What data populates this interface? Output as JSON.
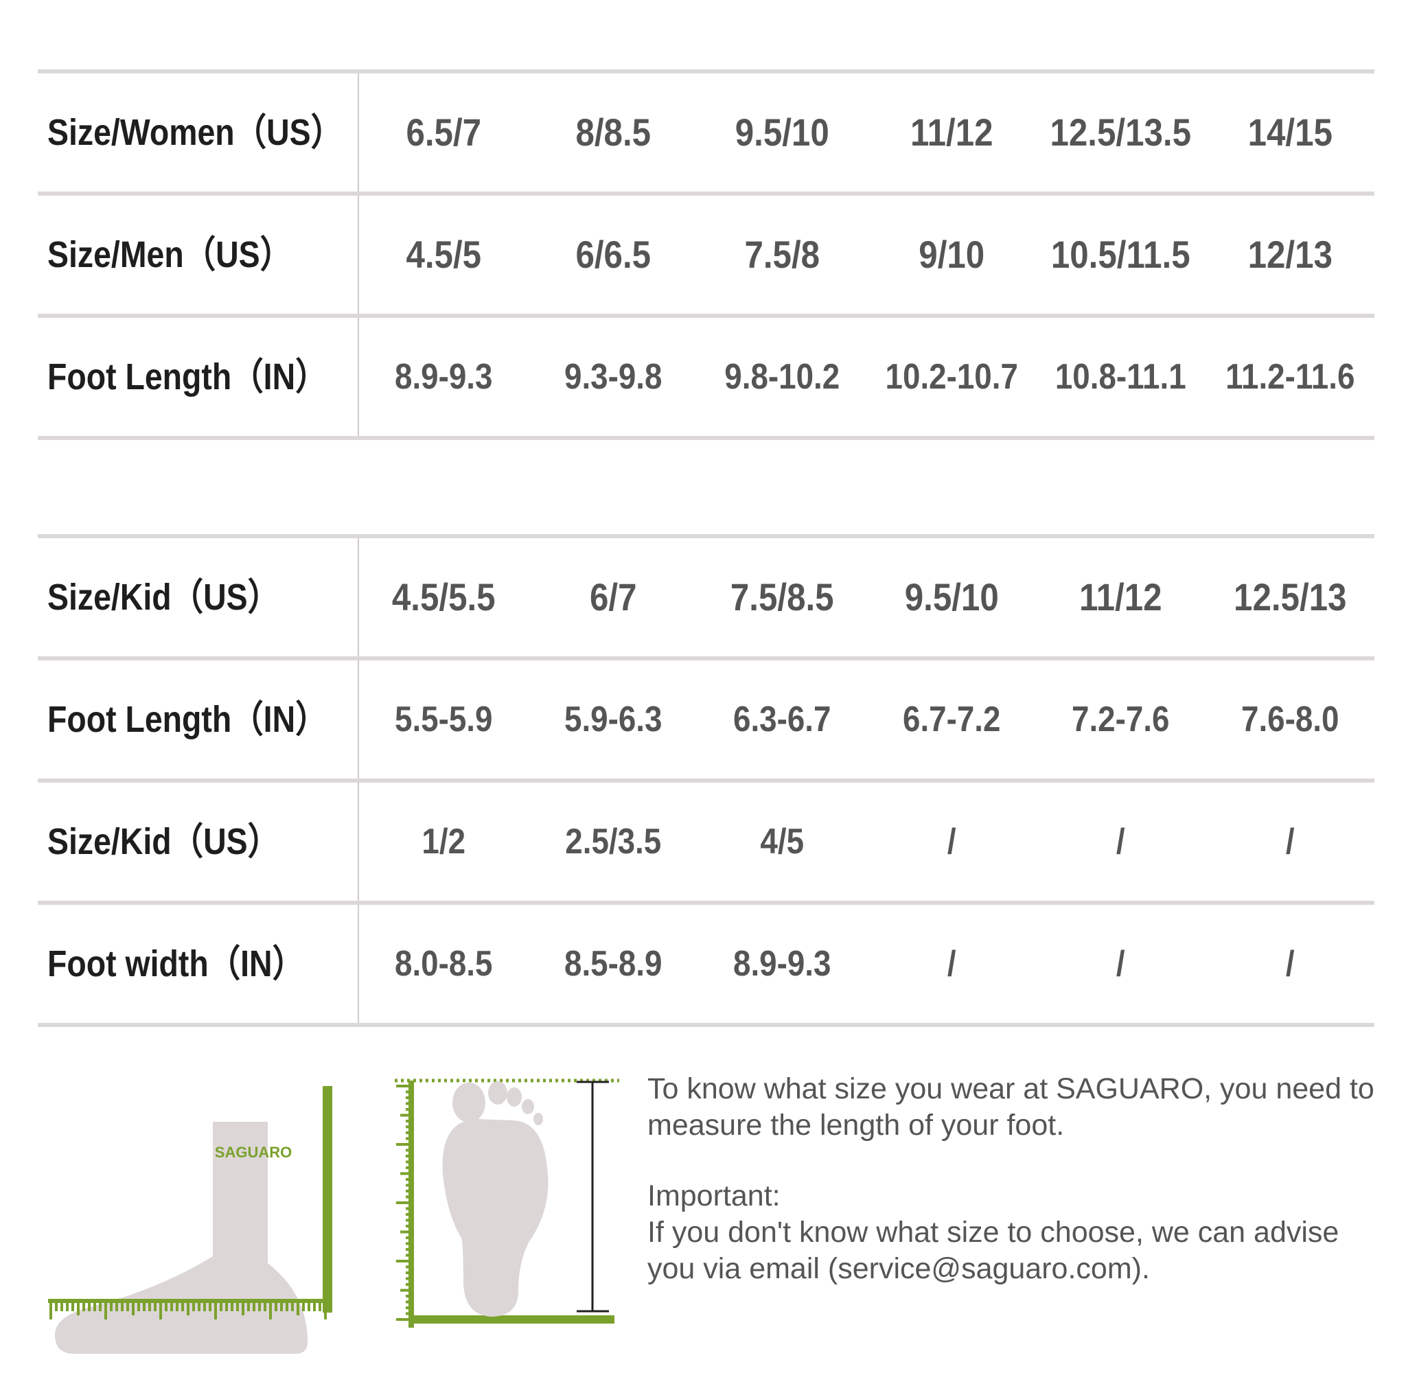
{
  "adult_table": {
    "rows": [
      {
        "label": "Size/Women（US）",
        "cells": [
          "6.5/7",
          "8/8.5",
          "9.5/10",
          "11/12",
          "12.5/13.5",
          "14/15"
        ]
      },
      {
        "label": "Size/Men（US）",
        "cells": [
          "4.5/5",
          "6/6.5",
          "7.5/8",
          "9/10",
          "10.5/11.5",
          "12/13"
        ]
      },
      {
        "label": "Foot Length（IN）",
        "cells": [
          "8.9-9.3",
          "9.3-9.8",
          "9.8-10.2",
          "10.2-10.7",
          "10.8-11.1",
          "11.2-11.6"
        ]
      }
    ]
  },
  "kid_table": {
    "rows": [
      {
        "label": "Size/Kid（US）",
        "cells": [
          "4.5/5.5",
          "6/7",
          "7.5/8.5",
          "9.5/10",
          "11/12",
          "12.5/13"
        ]
      },
      {
        "label": "Foot Length（IN）",
        "cells": [
          "5.5-5.9",
          "5.9-6.3",
          "6.3-6.7",
          "6.7-7.2",
          "7.2-7.6",
          "7.6-8.0"
        ]
      },
      {
        "label": "Size/Kid（US）",
        "cells": [
          "1/2",
          "2.5/3.5",
          "4/5",
          "/",
          "/",
          "/"
        ]
      },
      {
        "label": "Foot width（IN）",
        "cells": [
          "8.0-8.5",
          "8.5-8.9",
          "8.9-9.3",
          "/",
          "/",
          "/"
        ]
      }
    ]
  },
  "sock_logo": "SAGUARO",
  "info": {
    "line1": "To know what size you wear at SAGUARO, you need to measure the length of your foot.",
    "important_heading": "Important:",
    "important_text": "If you don't know what size to choose, we can advise you via email (service@saguaro.com)."
  },
  "colors": {
    "accent_green": "#7aa12c",
    "shape_gray": "#ddd6d6",
    "divider": "#dcd8d8",
    "value_text": "#555555",
    "label_text": "#1e1e1e"
  }
}
